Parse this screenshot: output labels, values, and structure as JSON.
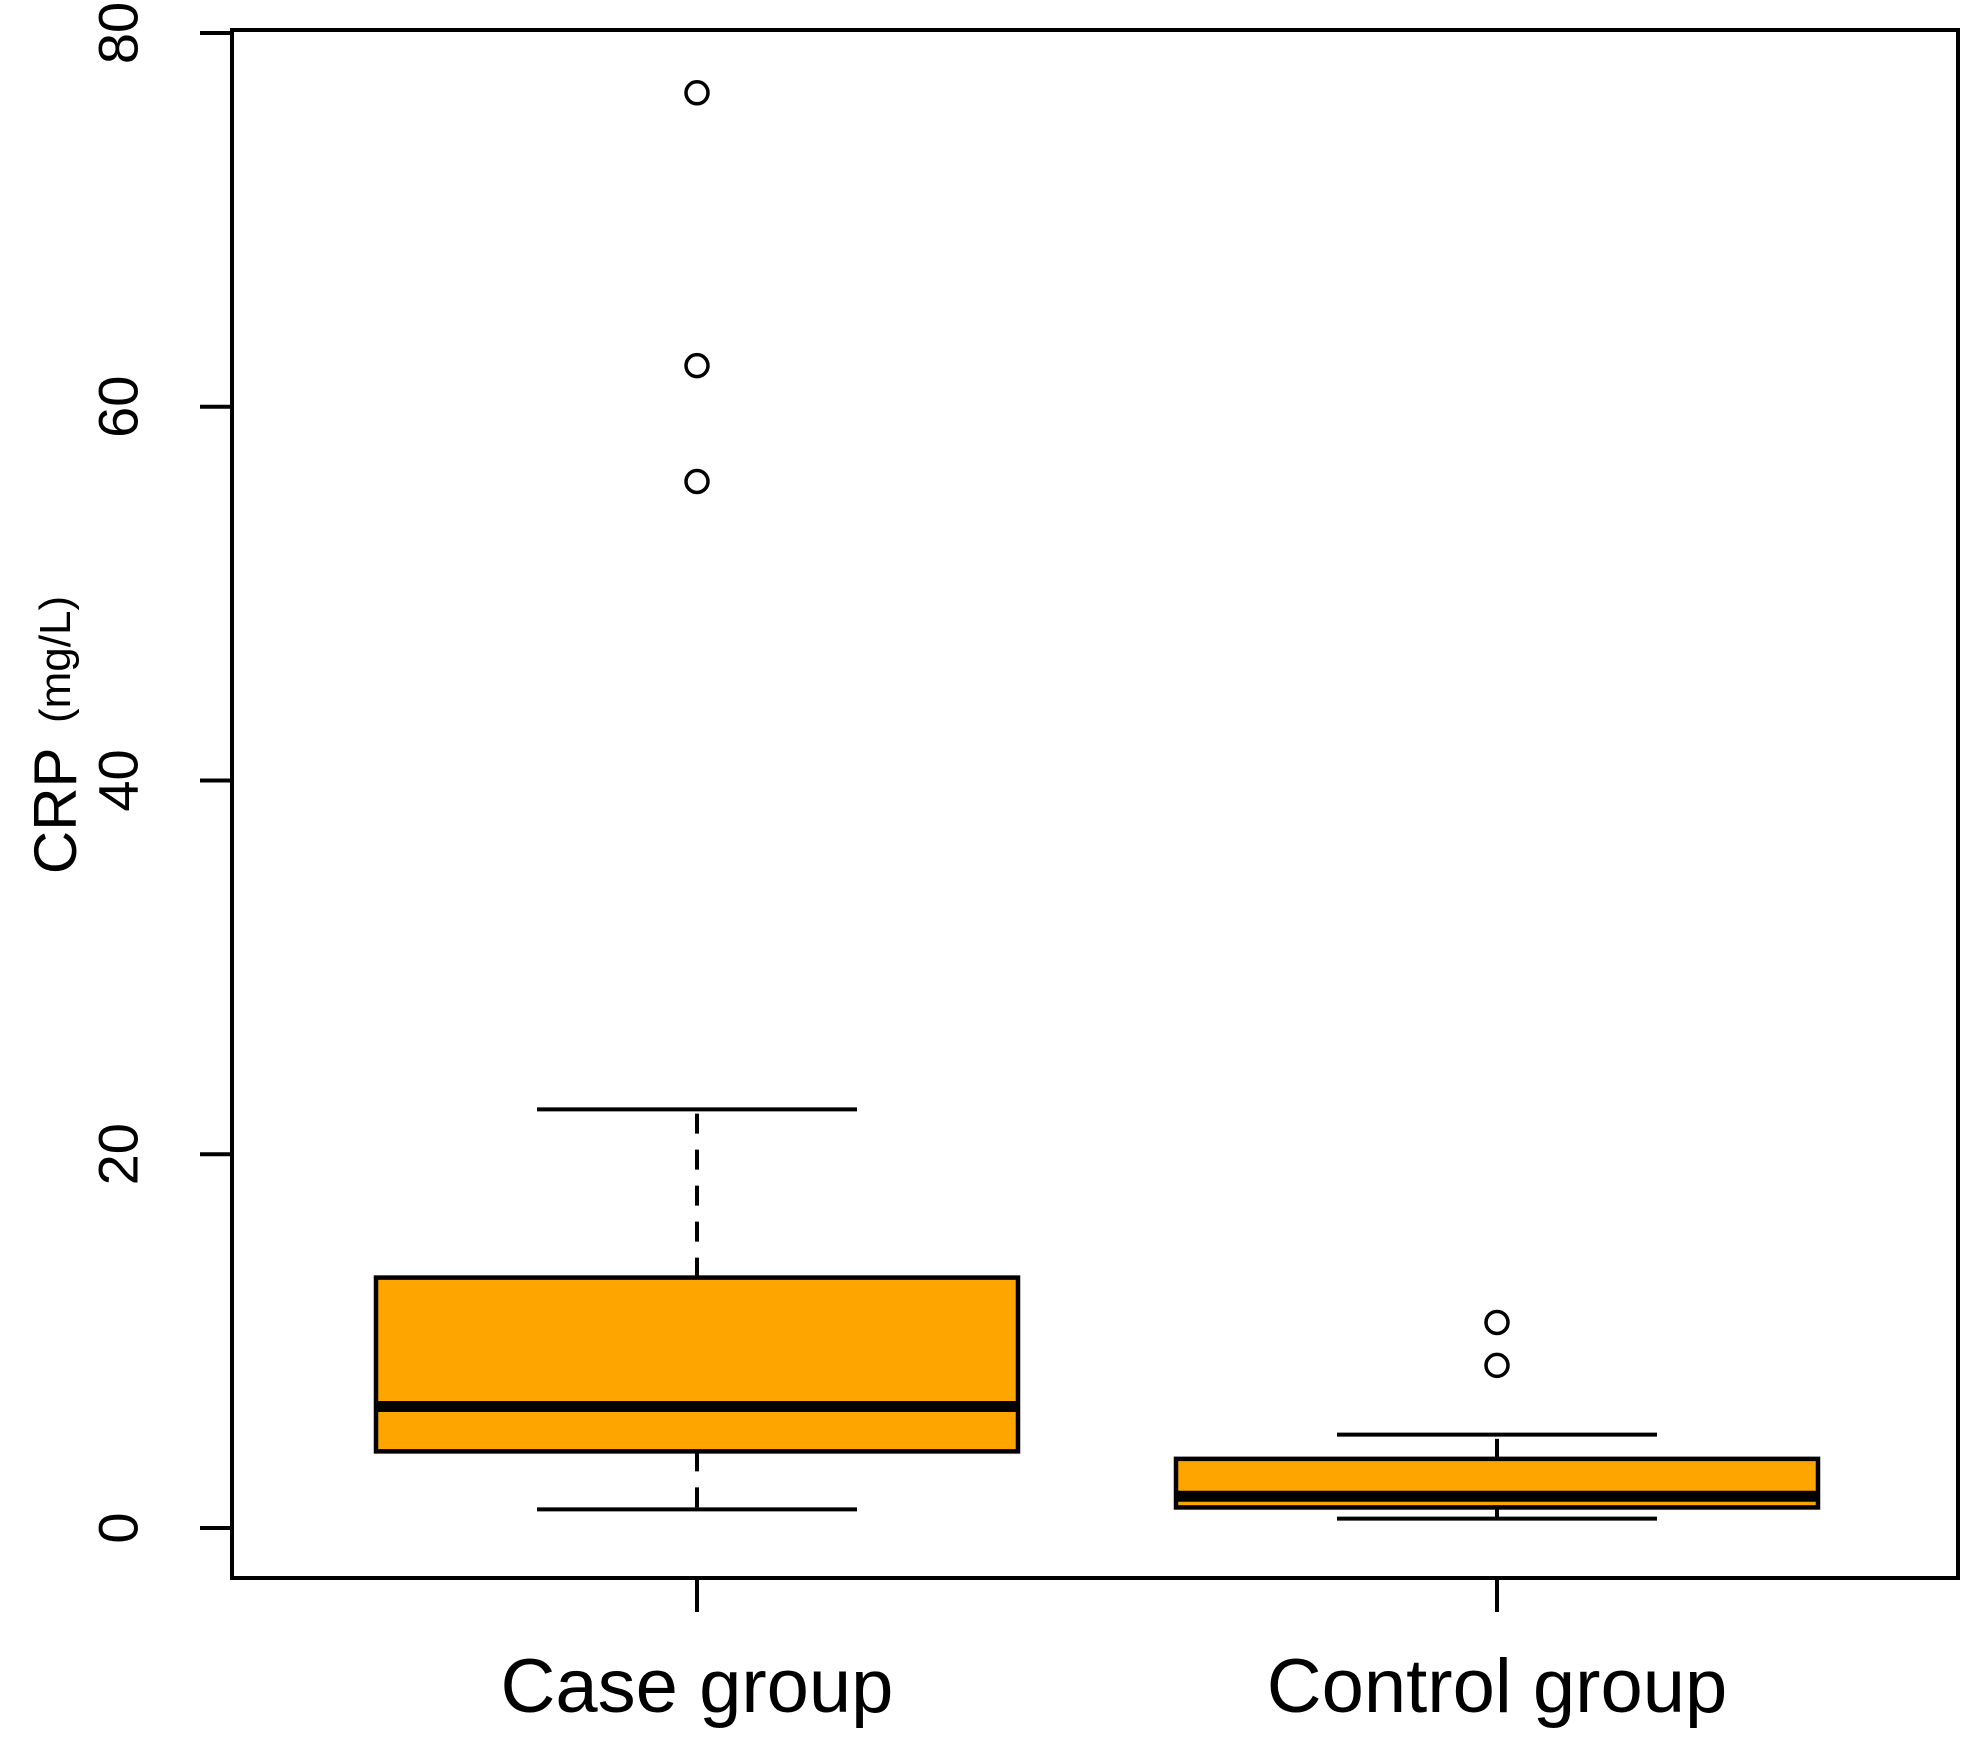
{
  "chart_data": {
    "type": "boxplot",
    "title": "",
    "ylabel": "CRP",
    "ylabel_unit": "(mg/L)",
    "xlabel": "",
    "ylim": [
      0,
      80
    ],
    "yticks": [
      0,
      20,
      40,
      60,
      80
    ],
    "grid": false,
    "legend": null,
    "categories": [
      "Case group",
      "Control group"
    ],
    "series": [
      {
        "name": "Case group",
        "whisker_low": 1.0,
        "q1": 4.1,
        "median": 6.5,
        "q3": 13.4,
        "whisker_high": 22.4,
        "outliers": [
          56.0,
          62.2,
          76.8
        ]
      },
      {
        "name": "Control group",
        "whisker_low": 0.5,
        "q1": 1.1,
        "median": 1.7,
        "q3": 3.7,
        "whisker_high": 5.0,
        "outliers": [
          8.7,
          11.0
        ]
      }
    ],
    "colors": {
      "box_fill": "#FFA500",
      "line": "#000000",
      "outlier_fill": "#FFFFFF",
      "background": "#FFFFFF"
    }
  }
}
